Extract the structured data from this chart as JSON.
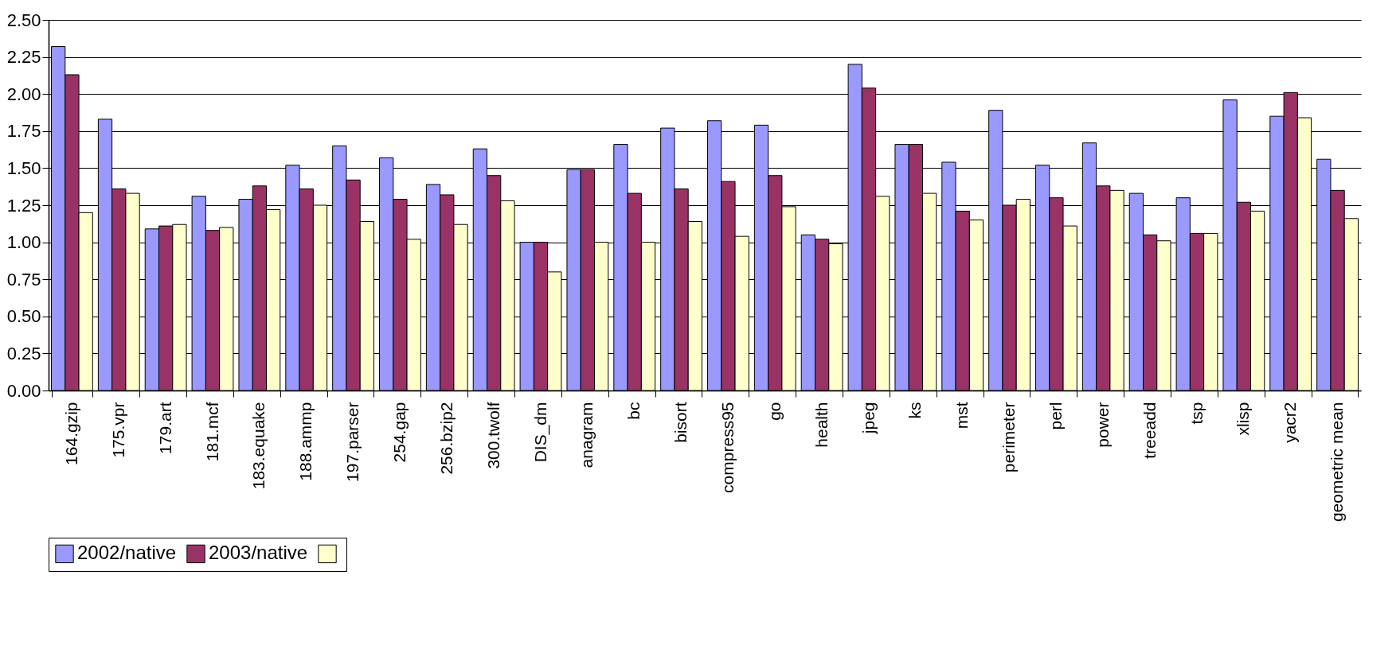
{
  "chart_data": {
    "type": "bar",
    "categories": [
      "164.gzip",
      "175.vpr",
      "179.art",
      "181.mcf",
      "183.equake",
      "188.ammp",
      "197.parser",
      "254.gap",
      "256.bzip2",
      "300.twolf",
      "DIS_dm",
      "anagram",
      "bc",
      "bisort",
      "compress95",
      "go",
      "health",
      "jpeg",
      "ks",
      "mst",
      "perimeter",
      "perl",
      "power",
      "treeadd",
      "tsp",
      "xlisp",
      "yacr2",
      "geometric mean"
    ],
    "series": [
      {
        "name": "2002/native",
        "color": "#9999ff",
        "values": [
          2.32,
          1.83,
          1.09,
          1.31,
          1.29,
          1.52,
          1.65,
          1.57,
          1.39,
          1.63,
          1.0,
          1.49,
          1.66,
          1.77,
          1.82,
          1.79,
          1.05,
          2.2,
          1.66,
          1.54,
          1.89,
          1.52,
          1.67,
          1.33,
          1.3,
          1.96,
          1.85,
          1.56
        ]
      },
      {
        "name": "2003/native",
        "color": "#993366",
        "values": [
          2.13,
          1.36,
          1.11,
          1.08,
          1.38,
          1.36,
          1.42,
          1.29,
          1.32,
          1.45,
          1.0,
          1.49,
          1.33,
          1.36,
          1.41,
          1.45,
          1.02,
          2.04,
          1.66,
          1.21,
          1.25,
          1.3,
          1.38,
          1.05,
          1.06,
          1.27,
          2.01,
          1.35
        ]
      },
      {
        "color": "#ffffcc",
        "values": [
          1.2,
          1.33,
          1.12,
          1.1,
          1.22,
          1.25,
          1.14,
          1.02,
          1.12,
          1.28,
          0.8,
          1.0,
          1.0,
          1.14,
          1.04,
          1.24,
          0.99,
          1.31,
          1.33,
          1.15,
          1.29,
          1.11,
          1.35,
          1.01,
          1.06,
          1.21,
          1.84,
          1.16
        ]
      }
    ],
    "ylim": [
      0,
      2.5
    ],
    "yticks": [
      {
        "value": 0,
        "label": "0.00"
      },
      {
        "value": 0.25,
        "label": "0.25"
      },
      {
        "value": 0.5,
        "label": "0.50"
      },
      {
        "value": 0.75,
        "label": "0.75"
      },
      {
        "value": 1,
        "label": "1.00"
      },
      {
        "value": 1.25,
        "label": "1.25"
      },
      {
        "value": 1.5,
        "label": "1.50"
      },
      {
        "value": 1.75,
        "label": "1.75"
      },
      {
        "value": 2,
        "label": "2.00"
      },
      {
        "value": 2.25,
        "label": "2.25"
      },
      {
        "value": 2.5,
        "label": "2.50"
      }
    ],
    "grid": "y",
    "legend": "bottom"
  }
}
